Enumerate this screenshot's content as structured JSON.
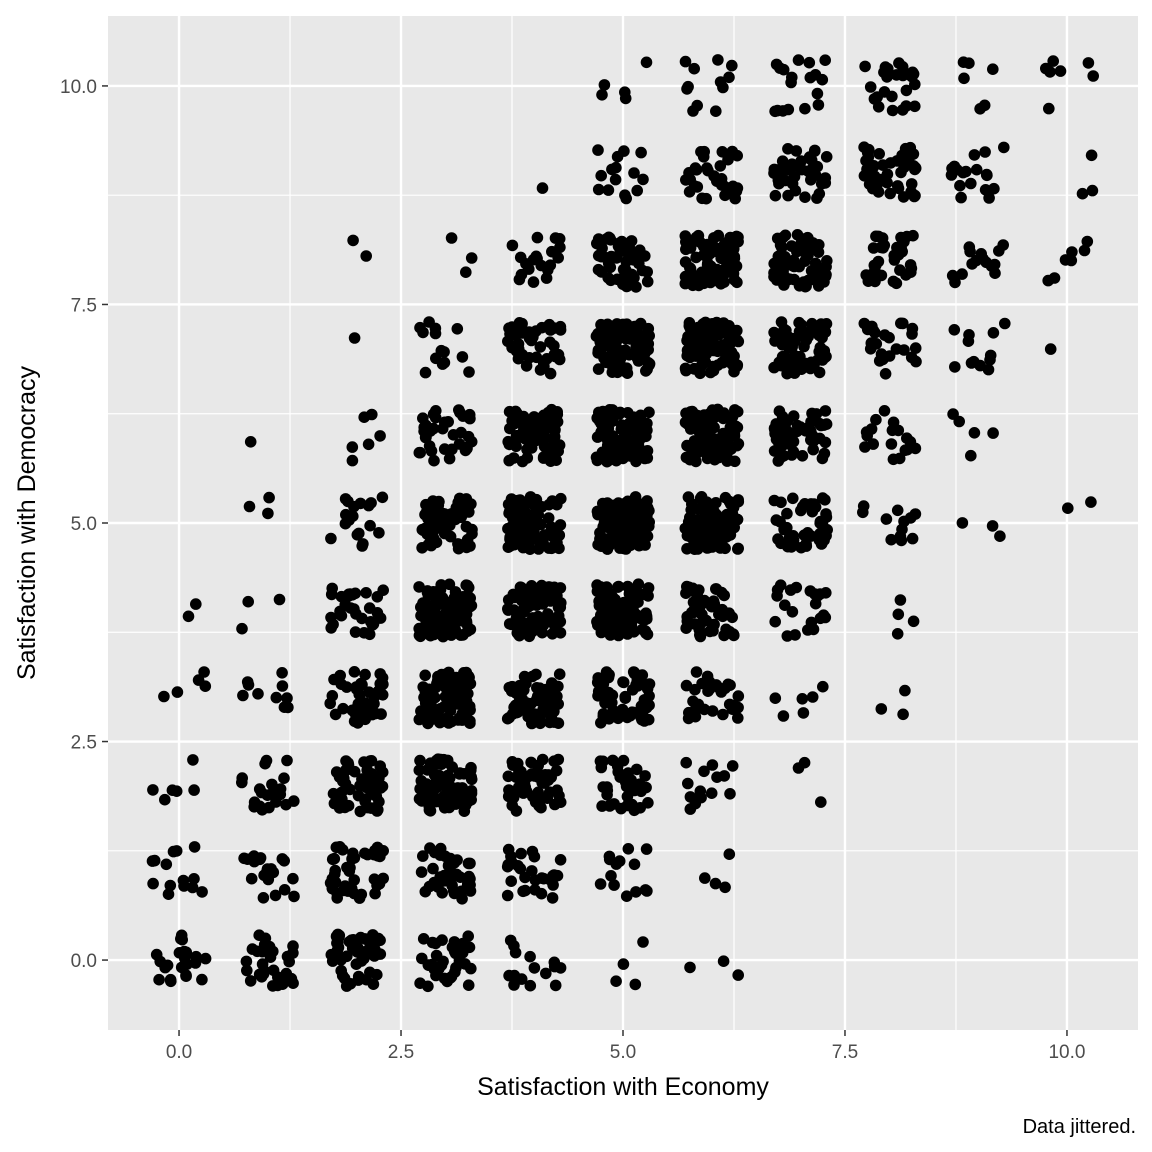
{
  "chart_data": {
    "type": "scatter",
    "title": "",
    "xlabel": "Satisfaction with Economy",
    "ylabel": "Satisfaction with Democracy",
    "caption": "Data jittered.",
    "xlim": [
      -0.8,
      10.8
    ],
    "ylim": [
      -0.8,
      10.8
    ],
    "x_ticks": [
      {
        "value": 0,
        "label": "0.0"
      },
      {
        "value": 2.5,
        "label": "2.5"
      },
      {
        "value": 5,
        "label": "5.0"
      },
      {
        "value": 7.5,
        "label": "7.5"
      },
      {
        "value": 10,
        "label": "10.0"
      }
    ],
    "y_ticks": [
      {
        "value": 0,
        "label": "0.0"
      },
      {
        "value": 2.5,
        "label": "2.5"
      },
      {
        "value": 5,
        "label": "5.0"
      },
      {
        "value": 7.5,
        "label": "7.5"
      },
      {
        "value": 10,
        "label": "10.0"
      }
    ],
    "grid": true,
    "legend": "none",
    "point_color": "#000000",
    "panel_color": "#e8e8e8",
    "grid_color": "#ffffff",
    "jitter": 0.3,
    "cells": [
      [
        0,
        0,
        24
      ],
      [
        1,
        0,
        30
      ],
      [
        2,
        0,
        45
      ],
      [
        3,
        0,
        35
      ],
      [
        4,
        0,
        15
      ],
      [
        5,
        0,
        4
      ],
      [
        6,
        0,
        3
      ],
      [
        0,
        1,
        14
      ],
      [
        1,
        1,
        22
      ],
      [
        2,
        1,
        42
      ],
      [
        3,
        1,
        40
      ],
      [
        4,
        1,
        28
      ],
      [
        5,
        1,
        14
      ],
      [
        6,
        1,
        4
      ],
      [
        0,
        2,
        6
      ],
      [
        1,
        2,
        22
      ],
      [
        2,
        2,
        55
      ],
      [
        3,
        2,
        80
      ],
      [
        4,
        2,
        55
      ],
      [
        5,
        2,
        35
      ],
      [
        6,
        2,
        15
      ],
      [
        7,
        2,
        3
      ],
      [
        0,
        3,
        5
      ],
      [
        1,
        3,
        10
      ],
      [
        2,
        3,
        45
      ],
      [
        3,
        3,
        90
      ],
      [
        4,
        3,
        75
      ],
      [
        5,
        3,
        60
      ],
      [
        6,
        3,
        30
      ],
      [
        7,
        3,
        6
      ],
      [
        8,
        3,
        3
      ],
      [
        0,
        4,
        2
      ],
      [
        1,
        4,
        3
      ],
      [
        2,
        4,
        30
      ],
      [
        3,
        4,
        90
      ],
      [
        4,
        4,
        95
      ],
      [
        5,
        4,
        100
      ],
      [
        6,
        4,
        50
      ],
      [
        7,
        4,
        22
      ],
      [
        8,
        4,
        4
      ],
      [
        1,
        5,
        3
      ],
      [
        2,
        5,
        18
      ],
      [
        3,
        5,
        60
      ],
      [
        4,
        5,
        100
      ],
      [
        5,
        5,
        120
      ],
      [
        6,
        5,
        100
      ],
      [
        7,
        5,
        45
      ],
      [
        8,
        5,
        12
      ],
      [
        9,
        5,
        3
      ],
      [
        10,
        5,
        2
      ],
      [
        1,
        6,
        1
      ],
      [
        2,
        6,
        6
      ],
      [
        3,
        6,
        35
      ],
      [
        4,
        6,
        70
      ],
      [
        5,
        6,
        110
      ],
      [
        6,
        6,
        110
      ],
      [
        7,
        6,
        55
      ],
      [
        8,
        6,
        18
      ],
      [
        9,
        6,
        5
      ],
      [
        2,
        7,
        1
      ],
      [
        3,
        7,
        14
      ],
      [
        4,
        7,
        45
      ],
      [
        5,
        7,
        100
      ],
      [
        6,
        7,
        110
      ],
      [
        7,
        7,
        70
      ],
      [
        8,
        7,
        25
      ],
      [
        9,
        7,
        12
      ],
      [
        10,
        7,
        1
      ],
      [
        2,
        8,
        2
      ],
      [
        3,
        8,
        3
      ],
      [
        4,
        8,
        20
      ],
      [
        5,
        8,
        60
      ],
      [
        6,
        8,
        90
      ],
      [
        7,
        8,
        65
      ],
      [
        8,
        8,
        35
      ],
      [
        9,
        8,
        15
      ],
      [
        10,
        8,
        7
      ],
      [
        4,
        9,
        1
      ],
      [
        5,
        9,
        15
      ],
      [
        6,
        9,
        35
      ],
      [
        7,
        9,
        40
      ],
      [
        8,
        9,
        45
      ],
      [
        9,
        9,
        18
      ],
      [
        10,
        9,
        3
      ],
      [
        5,
        10,
        5
      ],
      [
        6,
        10,
        12
      ],
      [
        7,
        10,
        18
      ],
      [
        8,
        10,
        25
      ],
      [
        9,
        10,
        6
      ],
      [
        10,
        10,
        7
      ]
    ]
  }
}
